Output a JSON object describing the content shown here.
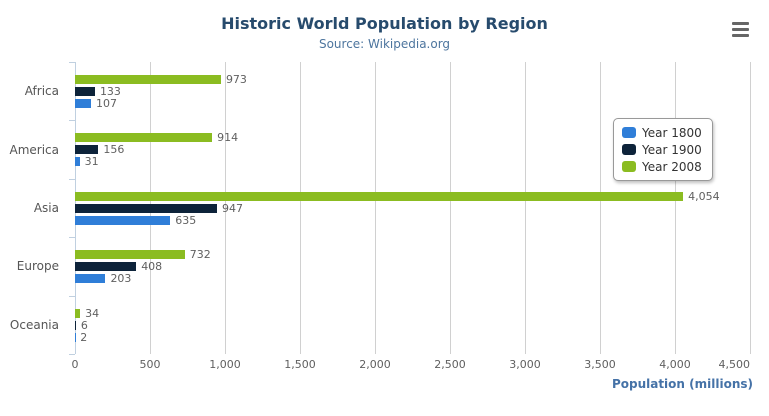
{
  "title": "Historic World Population by Region",
  "subtitle": "Source: Wikipedia.org",
  "menu_icon": "hamburger-icon",
  "colors": {
    "title": "#274b6d",
    "subtitle": "#4d759e",
    "axis_title": "#4572a7",
    "grid": "#d0d0d0",
    "axis_line": "#c0d0e0",
    "text_gray": "#606060",
    "legend_border": "#999999",
    "menu_icon": "#666666"
  },
  "chart_data": {
    "type": "bar",
    "orientation": "horizontal",
    "title": "Historic World Population by Region",
    "subtitle": "Source: Wikipedia.org",
    "categories": [
      "Africa",
      "America",
      "Asia",
      "Europe",
      "Oceania"
    ],
    "series": [
      {
        "name": "Year 1800",
        "color": "#2f7ed8",
        "values": [
          107,
          31,
          635,
          203,
          2
        ]
      },
      {
        "name": "Year 1900",
        "color": "#0d233a",
        "values": [
          133,
          156,
          947,
          408,
          6
        ]
      },
      {
        "name": "Year 2008",
        "color": "#8bbc21",
        "values": [
          973,
          914,
          4054,
          732,
          34
        ]
      }
    ],
    "display_order": [
      "Year 2008",
      "Year 1900",
      "Year 1800"
    ],
    "xlabel": "Population (millions)",
    "ylabel": "",
    "xlim": [
      0,
      4500
    ],
    "xticks": [
      0,
      500,
      1000,
      1500,
      2000,
      2500,
      3000,
      3500,
      4000,
      4500
    ],
    "xtick_labels": [
      "0",
      "500",
      "1,000",
      "1,500",
      "2,000",
      "2,500",
      "3,000",
      "3,500",
      "4,000",
      "4,500"
    ],
    "grid": true,
    "data_labels": true,
    "legend_position": "right-overlay",
    "legend_entries": [
      "Year 1800",
      "Year 1900",
      "Year 2008"
    ]
  }
}
